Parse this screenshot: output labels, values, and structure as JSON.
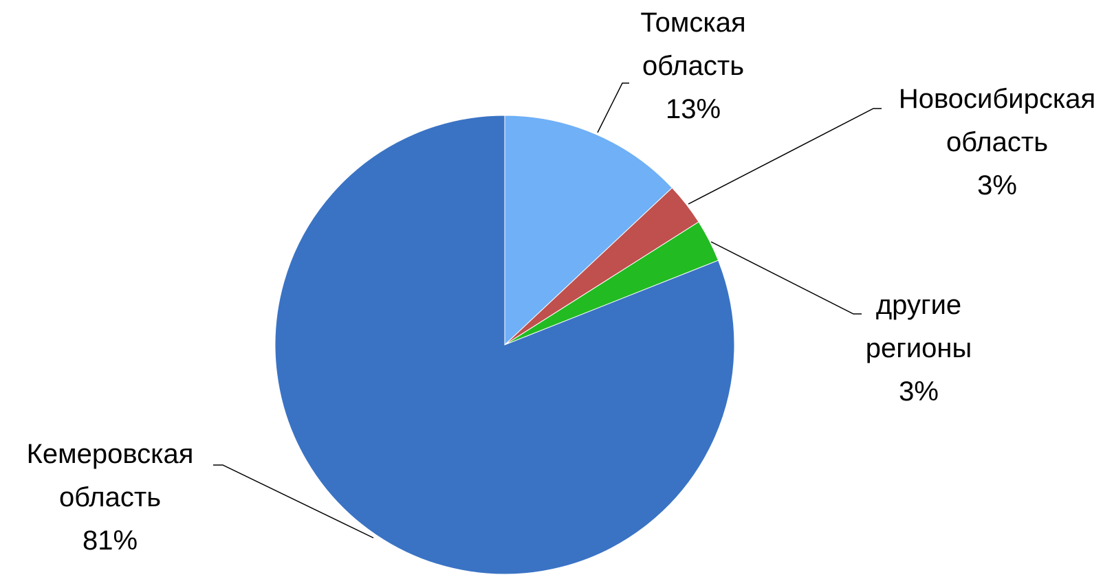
{
  "chart_data": {
    "type": "pie",
    "categories": [
      "Томская область",
      "Новосибирская область",
      "другие регионы",
      "Кемеровская область"
    ],
    "values": [
      13,
      3,
      3,
      81
    ],
    "value_labels": [
      "13%",
      "3%",
      "3%",
      "81%"
    ],
    "colors": [
      "#6fb0f7",
      "#c0504d",
      "#22bb22",
      "#3a73c4"
    ],
    "start_angle": 0,
    "direction": "clockwise"
  }
}
